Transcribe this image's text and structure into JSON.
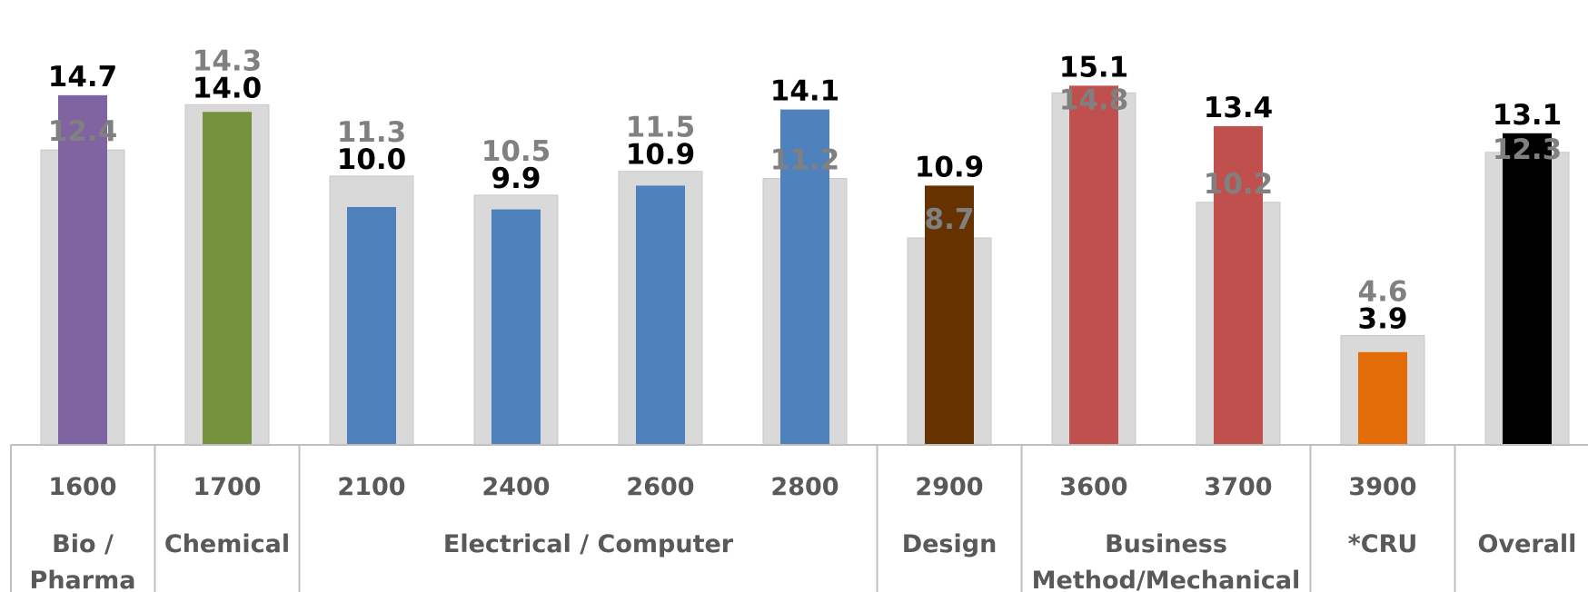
{
  "chart_data": {
    "type": "bar",
    "title": "",
    "xlabel": "",
    "ylabel": "",
    "ylim": [
      0,
      16
    ],
    "grid": false,
    "legend": "none",
    "categories": [
      "1600",
      "1700",
      "2100",
      "2400",
      "2600",
      "2800",
      "2900",
      "3600",
      "3700",
      "3900",
      "Overall"
    ],
    "groups": [
      {
        "label": "Bio / Pharma",
        "codes": [
          "1600"
        ]
      },
      {
        "label": "Chemical",
        "codes": [
          "1700"
        ]
      },
      {
        "label": "Electrical / Computer",
        "codes": [
          "2100",
          "2400",
          "2600",
          "2800"
        ]
      },
      {
        "label": "Design",
        "codes": [
          "2900"
        ]
      },
      {
        "label": "Business Method/Mechanical",
        "codes": [
          "3600",
          "3700"
        ]
      },
      {
        "label": "*CRU",
        "codes": [
          "3900"
        ]
      },
      {
        "label": "Overall",
        "codes": []
      }
    ],
    "series": [
      {
        "role": "background",
        "values": [
          12.4,
          14.3,
          11.3,
          10.5,
          11.5,
          11.2,
          8.7,
          14.8,
          10.2,
          4.6,
          12.3
        ],
        "color": "#d9d9d9",
        "label_color": "#808080"
      },
      {
        "role": "foreground",
        "values": [
          14.7,
          14.0,
          10.0,
          9.9,
          10.9,
          14.1,
          10.9,
          15.1,
          13.4,
          3.9,
          13.1
        ],
        "colors": [
          "#8064a2",
          "#76923c",
          "#4f81bd",
          "#4f81bd",
          "#4f81bd",
          "#4f81bd",
          "#663300",
          "#c0504d",
          "#c0504d",
          "#e36c09",
          "#000000"
        ],
        "label_color": "#000000"
      }
    ]
  }
}
